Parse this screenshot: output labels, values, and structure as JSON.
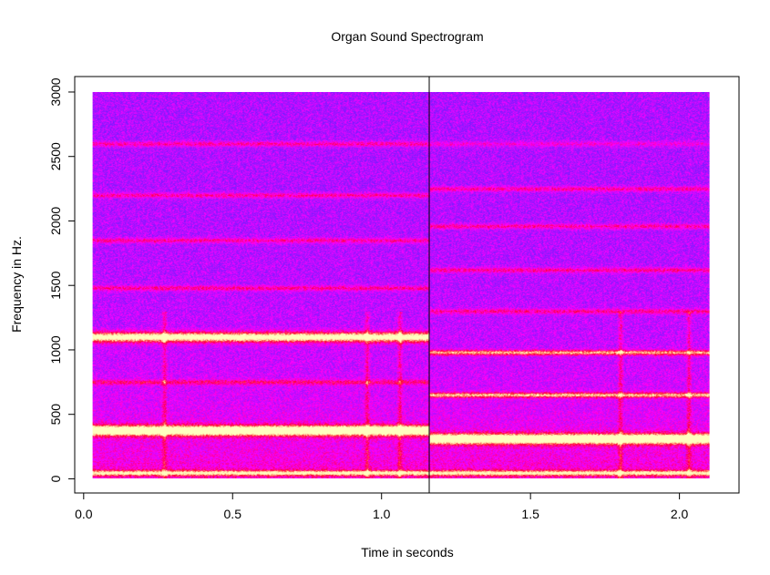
{
  "chart_data": {
    "type": "heatmap",
    "title": "Organ Sound Spectrogram",
    "xlabel": "Time in seconds",
    "ylabel": "Frequency in Hz.",
    "xlim": [
      -0.03,
      2.2
    ],
    "ylim": [
      -110,
      3120
    ],
    "data_x_range": [
      0.03,
      2.1
    ],
    "data_y_range": [
      0,
      3000
    ],
    "xticks": [
      0.0,
      0.5,
      1.0,
      1.5,
      2.0
    ],
    "xtick_labels": [
      "0.0",
      "0.5",
      "1.0",
      "1.5",
      "2.0"
    ],
    "yticks": [
      0,
      500,
      1000,
      1500,
      2000,
      2500,
      3000
    ],
    "ytick_labels": [
      "0",
      "500",
      "1000",
      "1500",
      "2000",
      "2500",
      "3000"
    ],
    "vline_x": 1.16,
    "colors": {
      "background": "#2222ff",
      "low": "#4a3dff",
      "mid": "#ff00ff",
      "high": "#ff1020",
      "peak": "#ffffb0",
      "vline": "#000000"
    },
    "harmonics": [
      {
        "start": 0.03,
        "end": 1.16,
        "freq": 375,
        "strength": 1.0
      },
      {
        "start": 1.16,
        "end": 2.1,
        "freq": 310,
        "strength": 1.0
      },
      {
        "start": 0.03,
        "end": 1.16,
        "freq": 1100,
        "strength": 0.85
      },
      {
        "start": 1.16,
        "end": 2.1,
        "freq": 980,
        "strength": 0.6
      },
      {
        "start": 1.16,
        "end": 2.1,
        "freq": 650,
        "strength": 0.6
      },
      {
        "start": 0.03,
        "end": 2.1,
        "freq": 45,
        "strength": 0.6
      },
      {
        "start": 0.03,
        "end": 1.16,
        "freq": 750,
        "strength": 0.3
      },
      {
        "start": 0.03,
        "end": 1.16,
        "freq": 1480,
        "strength": 0.3
      },
      {
        "start": 0.03,
        "end": 1.16,
        "freq": 1850,
        "strength": 0.3
      },
      {
        "start": 0.03,
        "end": 1.16,
        "freq": 2200,
        "strength": 0.3
      },
      {
        "start": 0.03,
        "end": 1.16,
        "freq": 2600,
        "strength": 0.3
      },
      {
        "start": 1.16,
        "end": 2.1,
        "freq": 1300,
        "strength": 0.3
      },
      {
        "start": 1.16,
        "end": 2.1,
        "freq": 1620,
        "strength": 0.3
      },
      {
        "start": 1.16,
        "end": 2.1,
        "freq": 1960,
        "strength": 0.3
      },
      {
        "start": 1.16,
        "end": 2.1,
        "freq": 2250,
        "strength": 0.3
      },
      {
        "start": 1.16,
        "end": 2.1,
        "freq": 2600,
        "strength": 0.2
      }
    ],
    "transients": [
      0.27,
      0.95,
      1.06,
      1.8,
      2.03
    ]
  }
}
